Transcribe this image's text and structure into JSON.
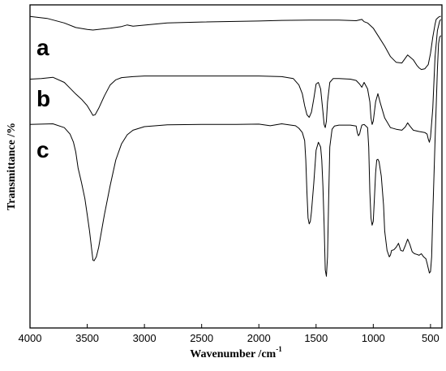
{
  "chart_data": {
    "type": "line",
    "xlabel": "Wavenumber /cm",
    "xlabel_sup": "-1",
    "ylabel": "Transmittance /%",
    "xlim": [
      4000,
      400
    ],
    "x_ticks": [
      4000,
      3500,
      3000,
      2500,
      2000,
      1500,
      1000,
      500
    ],
    "ylim": [
      0,
      1
    ],
    "grid": false,
    "series": [
      {
        "name": "a",
        "x": [
          4000,
          3850,
          3700,
          3600,
          3500,
          3450,
          3300,
          3200,
          3150,
          3100,
          2800,
          2500,
          2000,
          1800,
          1500,
          1300,
          1150,
          1100,
          1080,
          1050,
          1000,
          950,
          900,
          850,
          800,
          750,
          700,
          650,
          620,
          600,
          580,
          550,
          520,
          500,
          480,
          460,
          450,
          430,
          410
        ],
        "y": [
          0.964,
          0.958,
          0.944,
          0.93,
          0.924,
          0.922,
          0.928,
          0.933,
          0.938,
          0.934,
          0.944,
          0.947,
          0.95,
          0.952,
          0.953,
          0.953,
          0.951,
          0.955,
          0.948,
          0.944,
          0.928,
          0.9,
          0.872,
          0.84,
          0.822,
          0.82,
          0.845,
          0.83,
          0.813,
          0.805,
          0.8,
          0.802,
          0.815,
          0.85,
          0.9,
          0.94,
          0.955,
          0.962,
          0.965
        ]
      },
      {
        "name": "b",
        "x": [
          4000,
          3900,
          3800,
          3700,
          3650,
          3600,
          3550,
          3500,
          3470,
          3450,
          3430,
          3400,
          3350,
          3300,
          3250,
          3200,
          3100,
          3000,
          2500,
          2000,
          1800,
          1700,
          1650,
          1620,
          1600,
          1580,
          1560,
          1540,
          1520,
          1500,
          1480,
          1460,
          1440,
          1430,
          1420,
          1410,
          1400,
          1380,
          1350,
          1300,
          1200,
          1150,
          1120,
          1100,
          1080,
          1050,
          1030,
          1020,
          1010,
          1000,
          980,
          960,
          940,
          900,
          850,
          800,
          750,
          720,
          700,
          680,
          650,
          600,
          550,
          530,
          520,
          510,
          500,
          480,
          460,
          440,
          420,
          410
        ],
        "y": [
          0.77,
          0.772,
          0.776,
          0.76,
          0.742,
          0.724,
          0.708,
          0.688,
          0.67,
          0.658,
          0.66,
          0.68,
          0.718,
          0.752,
          0.768,
          0.775,
          0.778,
          0.78,
          0.78,
          0.78,
          0.778,
          0.772,
          0.752,
          0.725,
          0.688,
          0.66,
          0.652,
          0.668,
          0.71,
          0.755,
          0.76,
          0.74,
          0.67,
          0.63,
          0.62,
          0.64,
          0.7,
          0.76,
          0.772,
          0.772,
          0.77,
          0.766,
          0.755,
          0.745,
          0.76,
          0.74,
          0.7,
          0.65,
          0.63,
          0.64,
          0.7,
          0.725,
          0.698,
          0.65,
          0.62,
          0.615,
          0.612,
          0.622,
          0.635,
          0.625,
          0.612,
          0.608,
          0.605,
          0.6,
          0.585,
          0.575,
          0.59,
          0.68,
          0.84,
          0.92,
          0.95,
          0.955
        ]
      },
      {
        "name": "c",
        "x": [
          4000,
          3800,
          3700,
          3650,
          3620,
          3600,
          3580,
          3550,
          3520,
          3500,
          3480,
          3460,
          3450,
          3440,
          3420,
          3400,
          3380,
          3350,
          3300,
          3250,
          3200,
          3150,
          3100,
          3000,
          2800,
          2500,
          2200,
          2000,
          1900,
          1800,
          1720,
          1680,
          1650,
          1620,
          1600,
          1590,
          1580,
          1570,
          1560,
          1550,
          1540,
          1520,
          1500,
          1480,
          1460,
          1450,
          1440,
          1430,
          1420,
          1410,
          1400,
          1390,
          1380,
          1360,
          1340,
          1300,
          1200,
          1150,
          1140,
          1130,
          1120,
          1110,
          1100,
          1080,
          1050,
          1040,
          1030,
          1020,
          1010,
          1000,
          990,
          980,
          970,
          960,
          950,
          930,
          910,
          900,
          880,
          860,
          850,
          840,
          820,
          800,
          780,
          760,
          740,
          720,
          700,
          680,
          660,
          640,
          620,
          600,
          580,
          560,
          540,
          530,
          520,
          510,
          500,
          490,
          480,
          460,
          440,
          430,
          420,
          410
        ],
        "y": [
          0.63,
          0.632,
          0.62,
          0.6,
          0.575,
          0.545,
          0.495,
          0.45,
          0.4,
          0.35,
          0.3,
          0.24,
          0.21,
          0.208,
          0.22,
          0.25,
          0.29,
          0.35,
          0.44,
          0.52,
          0.57,
          0.598,
          0.612,
          0.623,
          0.629,
          0.63,
          0.63,
          0.631,
          0.626,
          0.632,
          0.628,
          0.626,
          0.618,
          0.605,
          0.58,
          0.52,
          0.42,
          0.34,
          0.322,
          0.33,
          0.36,
          0.45,
          0.55,
          0.575,
          0.56,
          0.52,
          0.44,
          0.32,
          0.18,
          0.16,
          0.22,
          0.4,
          0.56,
          0.615,
          0.625,
          0.628,
          0.628,
          0.625,
          0.605,
          0.595,
          0.6,
          0.615,
          0.628,
          0.63,
          0.62,
          0.56,
          0.42,
          0.34,
          0.318,
          0.33,
          0.4,
          0.48,
          0.52,
          0.522,
          0.515,
          0.47,
          0.38,
          0.3,
          0.24,
          0.22,
          0.226,
          0.24,
          0.242,
          0.25,
          0.262,
          0.24,
          0.238,
          0.255,
          0.275,
          0.258,
          0.236,
          0.23,
          0.228,
          0.225,
          0.23,
          0.22,
          0.214,
          0.2,
          0.185,
          0.17,
          0.175,
          0.22,
          0.35,
          0.58,
          0.8,
          0.88,
          0.9,
          0.905
        ]
      }
    ]
  }
}
